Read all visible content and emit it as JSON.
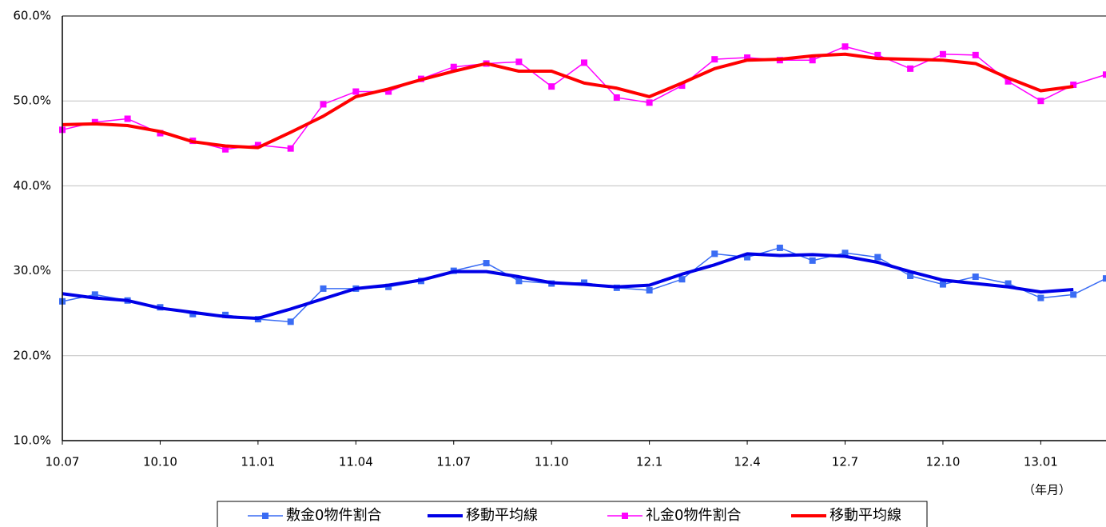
{
  "chart_data": {
    "type": "line",
    "categories": [
      "10.07",
      null,
      null,
      "10.10",
      null,
      null,
      "11.01",
      null,
      null,
      "11.04",
      null,
      null,
      "11.07",
      null,
      null,
      "11.10",
      null,
      null,
      "12.1",
      null,
      null,
      "12.4",
      null,
      null,
      "12.7",
      null,
      null,
      "12.10",
      null,
      null,
      "13.01",
      null,
      null
    ],
    "x_label": "（年月）",
    "ylim": [
      10,
      60
    ],
    "yticks": [
      {
        "value": 10,
        "label": "10.0%"
      },
      {
        "value": 20,
        "label": "20.0%"
      },
      {
        "value": 30,
        "label": "30.0%"
      },
      {
        "value": 40,
        "label": "40.0%"
      },
      {
        "value": 50,
        "label": "50.0%"
      },
      {
        "value": 60,
        "label": "60.0%"
      }
    ],
    "grid": true,
    "legend": "bottom",
    "series": [
      {
        "name": "敷金0物件割合",
        "color": "#3a6cf4",
        "marker": "square",
        "line_width": 1.5,
        "values": [
          26.4,
          27.2,
          26.5,
          25.7,
          24.9,
          24.8,
          24.3,
          24.0,
          27.9,
          27.9,
          28.1,
          28.8,
          30.0,
          30.9,
          28.8,
          28.5,
          28.6,
          28.0,
          27.7,
          29.0,
          32.0,
          31.6,
          32.7,
          31.2,
          32.1,
          31.6,
          29.4,
          28.4,
          29.3,
          28.5,
          26.8,
          27.2,
          29.1
        ]
      },
      {
        "name": "移動平均線",
        "color": "#0000e6",
        "line_width": 4,
        "values": [
          27.3,
          26.8,
          26.5,
          25.6,
          25.1,
          24.6,
          24.4,
          25.5,
          26.7,
          27.9,
          28.3,
          28.9,
          29.9,
          29.9,
          29.3,
          28.6,
          28.4,
          28.1,
          28.3,
          29.6,
          30.7,
          32.0,
          31.8,
          31.9,
          31.7,
          31.0,
          29.9,
          28.9,
          28.5,
          28.1,
          27.5,
          27.8,
          null
        ]
      },
      {
        "name": "礼金0物件割合",
        "color": "#ff00ff",
        "marker": "square",
        "line_width": 1.5,
        "values": [
          46.6,
          47.5,
          47.9,
          46.2,
          45.3,
          44.3,
          44.8,
          44.4,
          49.6,
          51.1,
          51.1,
          52.6,
          54.0,
          54.4,
          54.6,
          51.7,
          54.5,
          50.4,
          49.8,
          51.8,
          54.9,
          55.1,
          54.8,
          54.8,
          56.4,
          55.4,
          53.8,
          55.5,
          55.4,
          52.3,
          50.0,
          51.9,
          53.1
        ]
      },
      {
        "name": "移動平均線",
        "color": "#ff0000",
        "line_width": 4,
        "values": [
          47.2,
          47.3,
          47.1,
          46.4,
          45.2,
          44.7,
          44.5,
          46.3,
          48.2,
          50.5,
          51.4,
          52.5,
          53.5,
          54.4,
          53.5,
          53.5,
          52.1,
          51.5,
          50.5,
          52.1,
          53.8,
          54.8,
          54.9,
          55.3,
          55.5,
          55.0,
          54.9,
          54.8,
          54.4,
          52.7,
          51.2,
          51.7,
          null
        ]
      }
    ]
  }
}
